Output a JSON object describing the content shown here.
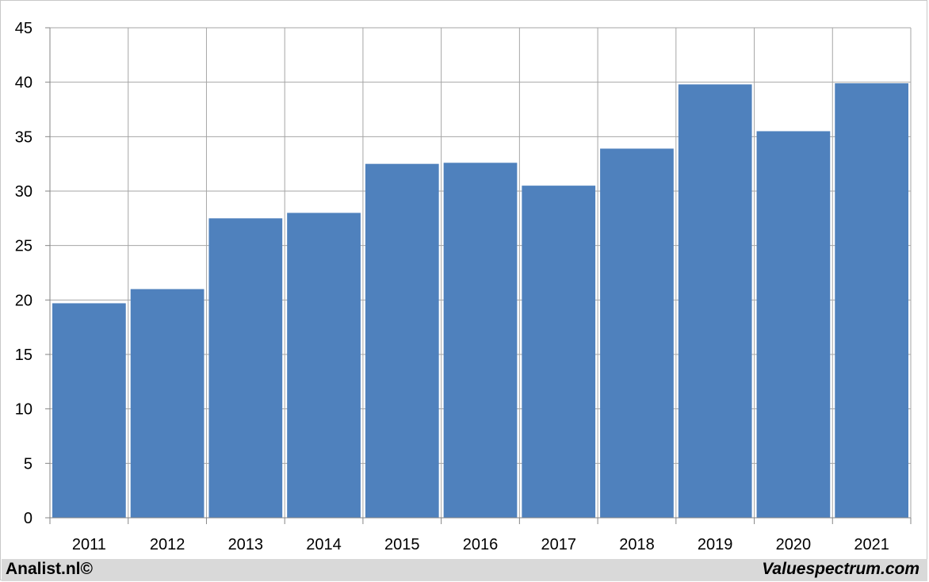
{
  "chart_data": {
    "type": "bar",
    "categories": [
      "2011",
      "2012",
      "2013",
      "2014",
      "2015",
      "2016",
      "2017",
      "2018",
      "2019",
      "2020",
      "2021"
    ],
    "values": [
      19.7,
      21.0,
      27.5,
      28.0,
      32.5,
      32.6,
      30.5,
      33.9,
      39.8,
      35.5,
      39.9
    ],
    "y_ticks": [
      "0",
      "5",
      "10",
      "15",
      "20",
      "25",
      "30",
      "35",
      "40",
      "45"
    ],
    "ylim": [
      0,
      45
    ],
    "grid": true,
    "bar_color": "#4f81bd",
    "grid_color": "#a6a6a6"
  },
  "footer": {
    "left_text": "Analist.nl©",
    "right_text": "Valuespectrum.com",
    "background": "#d9d9d9"
  }
}
